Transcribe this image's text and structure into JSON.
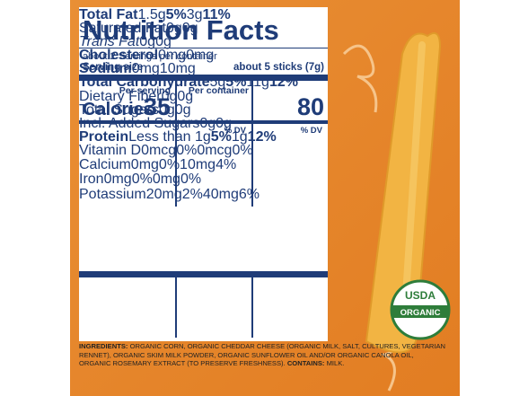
{
  "header": {
    "title": "Nutrition Facts",
    "servings": "about 2 Servings per container",
    "serving_size_label": "Serving size",
    "serving_size": "about 5 sticks (7g)"
  },
  "calories": {
    "label": "Calories",
    "serving_header": "Per serving",
    "container_header": "Per container",
    "serving": "35",
    "container": "80",
    "dv_header": "% DV"
  },
  "nutrients": [
    {
      "name": "Total Fat",
      "serving": "1.5g",
      "serving_dv": "5%",
      "container": "3g",
      "container_dv": "11%"
    },
    {
      "name": "Saturated Fat",
      "serving": "0g",
      "container": "0g"
    },
    {
      "name": "Trans Fat",
      "serving": "0g",
      "container": "0g"
    },
    {
      "name": "Cholesterol",
      "serving": "0mg",
      "container": "0mg"
    },
    {
      "name": "Sodium",
      "serving": "0mg",
      "container": "10mg"
    },
    {
      "name": "Total Carbohydrate",
      "serving": "5g",
      "serving_dv": "5%",
      "container": "11g",
      "container_dv": "12%"
    },
    {
      "name": "Dietary Fiber",
      "serving": "0g",
      "container": "0g"
    },
    {
      "name": "Total Sugars",
      "serving": "0g",
      "container": "0g"
    },
    {
      "name": "Incl. Added Sugars",
      "serving": "0g",
      "container": "0g"
    },
    {
      "name": "Protein",
      "serving": "Less than 1g",
      "serving_dv": "5%",
      "container": "1g",
      "container_dv": "12%"
    }
  ],
  "vitamins": [
    {
      "name": "Vitamin D",
      "serving": "0mcg",
      "serving_dv": "0%",
      "container": "0mcg",
      "container_dv": "0%"
    },
    {
      "name": "Calcium",
      "serving": "0mg",
      "serving_dv": "0%",
      "container": "10mg",
      "container_dv": "4%"
    },
    {
      "name": "Iron",
      "serving": "0mg",
      "serving_dv": "0%",
      "container": "0mg",
      "container_dv": "0%"
    },
    {
      "name": "Potassium",
      "serving": "20mg",
      "serving_dv": "2%",
      "container": "40mg",
      "container_dv": "6%"
    }
  ],
  "ingredients": {
    "label": "INGREDIENTS:",
    "text": "ORGANIC CORN, ORGANIC CHEDDAR CHEESE (ORGANIC MILK, SALT, CULTURES, VEGETARIAN RENNET), ORGANIC SKIM MILK POWDER, ORGANIC SUNFLOWER OIL AND/OR ORGANIC CANOLA OIL, ORGANIC ROSEMARY EXTRACT (TO PRESERVE FRESHNESS).",
    "contains_label": "CONTAINS:",
    "contains": "MILK."
  },
  "seal": {
    "top": "USDA",
    "band": "ORGANIC"
  }
}
